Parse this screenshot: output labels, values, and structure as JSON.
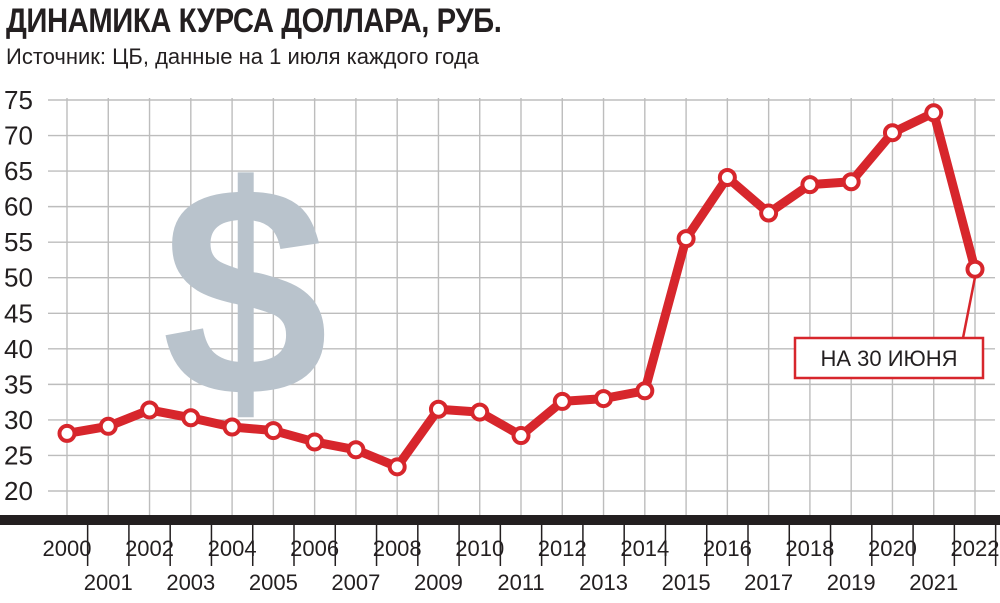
{
  "header": {
    "title": "ДИНАМИКА КУРСА ДОЛЛАРА, РУБ.",
    "subtitle": "Источник: ЦБ, данные на 1 июля каждого года"
  },
  "colors": {
    "line": "#d7262c",
    "marker_fill": "#ffffff",
    "grid": "#bdbdbd",
    "axis": "#231f20",
    "dollar": "#b9c3cc"
  },
  "decoration": {
    "dollar_glyph": "$"
  },
  "chart_data": {
    "type": "line",
    "title": "ДИНАМИКА КУРСА ДОЛЛАРА, РУБ.",
    "subtitle": "Источник: ЦБ, данные на 1 июля каждого года",
    "xlabel": "",
    "ylabel": "",
    "x": [
      2000,
      2001,
      2002,
      2003,
      2004,
      2005,
      2006,
      2007,
      2008,
      2009,
      2010,
      2011,
      2012,
      2013,
      2014,
      2015,
      2016,
      2017,
      2018,
      2019,
      2020,
      2021,
      2022
    ],
    "series": [
      {
        "name": "",
        "values": [
          28.1,
          29.1,
          31.4,
          30.3,
          29.0,
          28.5,
          26.9,
          25.8,
          23.4,
          31.5,
          31.1,
          27.8,
          32.6,
          33.0,
          34.1,
          55.5,
          64.1,
          59.1,
          63.1,
          63.5,
          70.4,
          73.2,
          51.2
        ]
      }
    ],
    "ylim": [
      20,
      75
    ],
    "yticks": [
      20,
      25,
      30,
      35,
      40,
      45,
      50,
      55,
      60,
      65,
      70,
      75
    ],
    "xtick_labels_top": [
      "2000",
      "2002",
      "2004",
      "2006",
      "2008",
      "2010",
      "2012",
      "2014",
      "2016",
      "2018",
      "2020",
      "2022"
    ],
    "xtick_labels_bottom": [
      "2001",
      "2003",
      "2005",
      "2007",
      "2009",
      "2011",
      "2013",
      "2015",
      "2017",
      "2019",
      "2021"
    ],
    "grid": true,
    "annotation": {
      "text": "НА 30 ИЮНЯ",
      "target_x": 2022
    }
  }
}
